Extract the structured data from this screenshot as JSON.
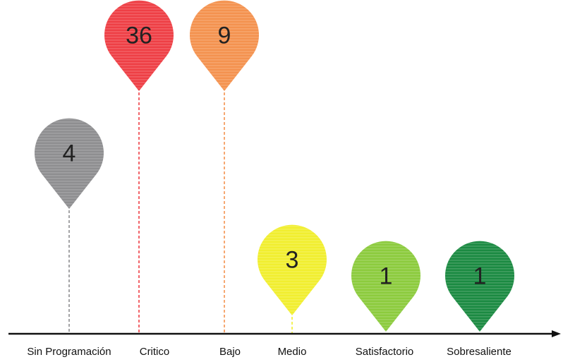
{
  "chart_data": {
    "type": "pin",
    "title": "",
    "xlabel": "",
    "ylabel": "",
    "categories": [
      "Sin Programación",
      "Critico",
      "Bajo",
      "Medio",
      "Satisfactorio",
      "Sobresaliente"
    ],
    "values": [
      4,
      36,
      9,
      3,
      1,
      1
    ],
    "colors": [
      "#8e8e90",
      "#ee3f45",
      "#f4924f",
      "#f1ee2f",
      "#8ccb3d",
      "#1b8a42"
    ],
    "grid": false,
    "legend": "none"
  }
}
